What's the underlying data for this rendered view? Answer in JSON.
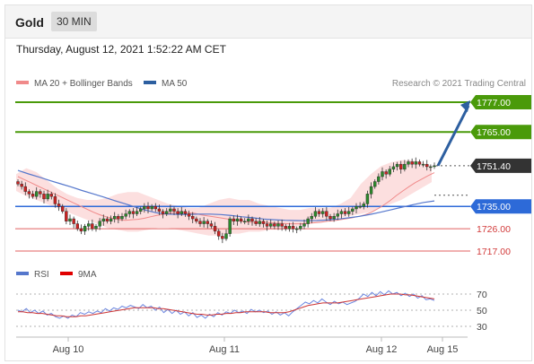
{
  "header": {
    "title": "Gold",
    "timeframe": "30 MIN"
  },
  "datetime": "Thursday, August 12, 2021 1:52:22 AM CET",
  "legend": {
    "ma20": "MA 20 + Bollinger Bands",
    "ma50": "MA 50",
    "copyright": "Research © 2021 Trading Central"
  },
  "rsi_legend": {
    "rsi": "RSI",
    "ma9": "9MA"
  },
  "colors": {
    "green": "#4a9a0a",
    "blue": "#2d6ad8",
    "red": "#e06060",
    "band": "#fbd9d9",
    "ma20": "#f08a8a",
    "ma50": "#5577cc",
    "arrow": "#2d5fa0",
    "current": "#333333"
  },
  "chart_data": [
    {
      "type": "candlestick",
      "x_labels": [
        "Aug 10",
        "Aug 11",
        "Aug 12",
        "Aug 15"
      ],
      "ylim": [
        1715,
        1780
      ],
      "levels": [
        {
          "value": 1777.0,
          "label": "1777.00",
          "kind": "resistance"
        },
        {
          "value": 1765.0,
          "label": "1765.00",
          "kind": "resistance"
        },
        {
          "value": 1751.4,
          "label": "1751.40",
          "kind": "current"
        },
        {
          "value": 1735.0,
          "label": "1735.00",
          "kind": "pivot"
        },
        {
          "value": 1726.0,
          "label": "1726.00",
          "kind": "support"
        },
        {
          "value": 1717.0,
          "label": "1717.00",
          "kind": "support"
        }
      ],
      "close": [
        1744,
        1743,
        1741,
        1740,
        1739,
        1741,
        1740,
        1738,
        1740,
        1739,
        1736,
        1735,
        1733,
        1729,
        1730,
        1728,
        1726,
        1725,
        1727,
        1728,
        1726,
        1727,
        1729,
        1730,
        1729,
        1730,
        1731,
        1730,
        1731,
        1732,
        1733,
        1732,
        1733,
        1734,
        1735,
        1734,
        1735,
        1734,
        1733,
        1732,
        1733,
        1734,
        1733,
        1732,
        1733,
        1732,
        1731,
        1730,
        1729,
        1728,
        1729,
        1728,
        1727,
        1725,
        1723,
        1722,
        1724,
        1730,
        1729,
        1730,
        1729,
        1729,
        1730,
        1729,
        1728,
        1729,
        1728,
        1727,
        1728,
        1727,
        1728,
        1727,
        1726,
        1727,
        1726,
        1726,
        1727,
        1728,
        1730,
        1731,
        1733,
        1732,
        1733,
        1731,
        1730,
        1731,
        1732,
        1733,
        1732,
        1733,
        1734,
        1735,
        1735,
        1736,
        1740,
        1743,
        1745,
        1747,
        1749,
        1748,
        1750,
        1751,
        1752,
        1750,
        1752,
        1753,
        1752,
        1753,
        1752,
        1752,
        1751,
        1751,
        1751.4
      ],
      "ma20": [
        1747,
        1745.8,
        1744.6,
        1743.4,
        1742.2,
        1741,
        1739.8,
        1738.6,
        1737.4,
        1736.2,
        1735,
        1733.8,
        1732.6,
        1731.6,
        1730.8,
        1730.2,
        1729.6,
        1729.4,
        1729.6,
        1729.8,
        1730.2,
        1730.8,
        1731.4,
        1731.8,
        1732.2,
        1732.4,
        1732.6,
        1732.4,
        1732.2,
        1731.6,
        1731.2,
        1730.8,
        1730.4,
        1730,
        1729.6,
        1729.2,
        1728.8,
        1728.6,
        1728.4,
        1728.6,
        1728.4,
        1728.2,
        1728.1,
        1728,
        1728,
        1728,
        1728.2,
        1728.4,
        1728.6,
        1729,
        1729.2,
        1729.6,
        1730,
        1730.4,
        1731,
        1731.6,
        1732.6,
        1734,
        1735.6,
        1737.4,
        1739.4,
        1741.2,
        1743,
        1744.6,
        1746,
        1747.4,
        1748.6
      ],
      "ma50": [
        1749.5,
        1748.1,
        1746.8,
        1745.4,
        1744.1,
        1742.8,
        1741.4,
        1740.1,
        1738.8,
        1737.4,
        1736.1,
        1734.7,
        1733.4,
        1732.4,
        1731.9,
        1731.8,
        1731.8,
        1731.9,
        1731.9,
        1731.7,
        1731.3,
        1730.8,
        1730.4,
        1729.9,
        1729.6,
        1729.4,
        1729.3,
        1729.2,
        1729.3,
        1729.5,
        1729.9,
        1730.4,
        1731,
        1731.8,
        1732.7,
        1733.7,
        1734.7,
        1735.7,
        1736.6,
        1737.2
      ],
      "bb_upper": [
        1748,
        1750.4,
        1748.8,
        1745.6,
        1742.4,
        1740,
        1738.4,
        1737.6,
        1737.6,
        1738.4,
        1740,
        1740.8,
        1740.8,
        1739.2,
        1737.6,
        1736,
        1735.2,
        1734.4,
        1734.4,
        1736,
        1737.6,
        1738.4,
        1737.6,
        1737.6,
        1736,
        1735.2,
        1734.4,
        1733.6,
        1733.6,
        1734.4,
        1734.4,
        1734.4,
        1736,
        1738.4,
        1744,
        1748,
        1751.2,
        1752.8,
        1753.6,
        1753.6,
        1752.8,
        1751.2
      ],
      "bb_lower": [
        1741.2,
        1739.2,
        1737.6,
        1736,
        1734.4,
        1732.8,
        1731.2,
        1729.6,
        1728,
        1726.4,
        1725.6,
        1724.8,
        1724.8,
        1725.6,
        1726.4,
        1726.4,
        1725.6,
        1724.8,
        1724,
        1723.2,
        1723.2,
        1724,
        1724,
        1724.8,
        1724.8,
        1725.6,
        1725.6,
        1726.4,
        1727.2,
        1728,
        1728.8,
        1729.6,
        1730.4,
        1731.2,
        1732,
        1732.8,
        1734.4,
        1736,
        1737.6,
        1740,
        1742.4,
        1744.8
      ],
      "forecast_arrow": {
        "from": 1751.4,
        "to": 1777.0
      }
    },
    {
      "type": "line",
      "title": "RSI",
      "ylim": [
        20,
        80
      ],
      "ticks": [
        70,
        50,
        30
      ],
      "rsi": [
        50,
        48,
        52,
        47,
        50,
        46,
        49,
        44,
        46,
        42,
        40,
        43,
        40,
        44,
        42,
        47,
        45,
        48,
        46,
        49,
        47,
        52,
        49,
        53,
        51,
        55,
        53,
        56,
        54,
        52,
        57,
        53,
        55,
        50,
        54,
        47,
        51,
        46,
        50,
        45,
        48,
        43,
        47,
        41,
        44,
        40,
        45,
        42,
        47,
        44,
        48,
        46,
        50,
        47,
        49,
        46,
        51,
        48,
        50,
        47,
        49,
        45,
        48,
        44,
        47,
        43,
        48,
        52,
        56,
        60,
        58,
        62,
        59,
        64,
        60,
        57,
        61,
        58,
        60,
        57,
        59,
        61,
        65,
        70,
        67,
        72,
        68,
        73,
        69,
        74,
        70,
        72,
        68,
        71,
        67,
        70,
        65,
        68,
        63,
        64,
        62
      ],
      "ma9": [
        48,
        48,
        47,
        47,
        46,
        46,
        45,
        44,
        43,
        43,
        42,
        42,
        42,
        43,
        43,
        44,
        45,
        46,
        47,
        48,
        49,
        50,
        51,
        52,
        53,
        53,
        53,
        53,
        53,
        52,
        52,
        51,
        50,
        49,
        48,
        47,
        46,
        45,
        45,
        44,
        44,
        45,
        45,
        46,
        46,
        47,
        47,
        48,
        48,
        48,
        48,
        48,
        47,
        47,
        47,
        47,
        48,
        50,
        52,
        54,
        56,
        57,
        58,
        59,
        59,
        59,
        59,
        60,
        61,
        62,
        63,
        64,
        65,
        66,
        67,
        68,
        69,
        70,
        70,
        70,
        69,
        69,
        68,
        67,
        66,
        65,
        64
      ]
    }
  ]
}
